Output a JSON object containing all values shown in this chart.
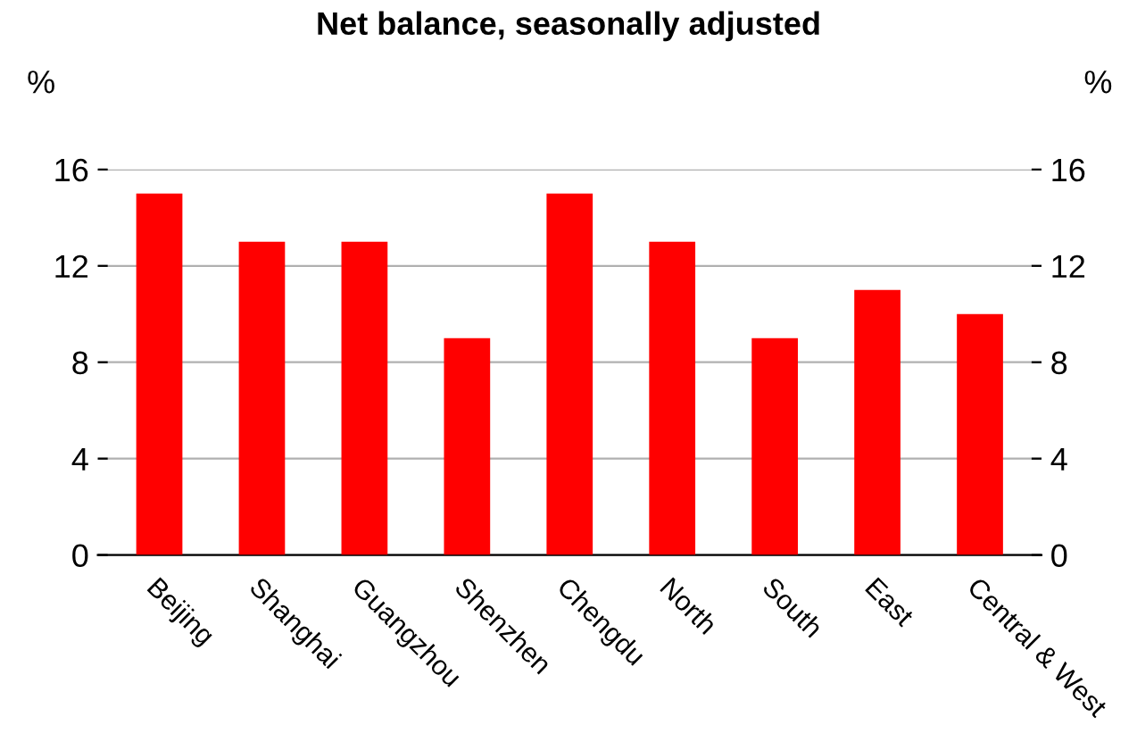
{
  "chart_data": {
    "type": "bar",
    "title": "Net balance, seasonally adjusted",
    "ylabel": "%",
    "y2label": "%",
    "categories": [
      "Beijing",
      "Shanghai",
      "Guangzhou",
      "Shenzhen",
      "Chengdu",
      "North",
      "South",
      "East",
      "Central & West"
    ],
    "values": [
      15,
      13,
      13,
      9,
      15,
      13,
      9,
      11,
      10
    ],
    "color": "#ff0000",
    "ylim": [
      0,
      16
    ],
    "yticks": [
      0,
      4,
      8,
      12,
      16
    ],
    "y2lim": [
      0,
      16
    ],
    "y2ticks": [
      0,
      4,
      8,
      12,
      16
    ],
    "grid": "y"
  }
}
